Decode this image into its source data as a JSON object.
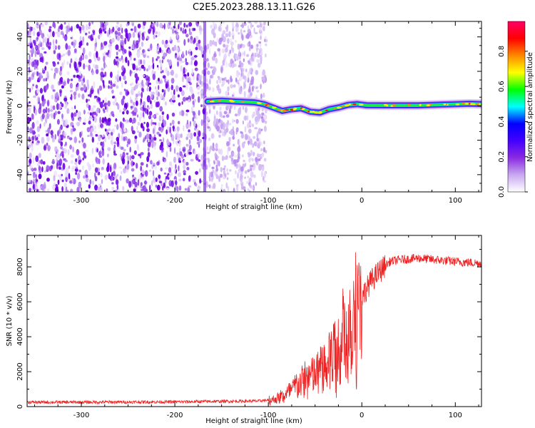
{
  "title": "C2E5.2023.288.13.11.G26",
  "chart_data": [
    {
      "type": "heatmap",
      "xlabel": "Height of straight line (km)",
      "ylabel": "Frequency (Hz)",
      "xlim": [
        -358,
        128
      ],
      "ylim": [
        -50,
        49
      ],
      "x_ticks": [
        -300,
        -200,
        -100,
        0,
        100
      ],
      "y_ticks": [
        -40,
        -20,
        0,
        20,
        40
      ],
      "colorbar": {
        "label": "Normalized spectral amplitude",
        "range": [
          0,
          0.97
        ],
        "ticks": [
          0.0,
          0.2,
          0.4,
          0.6,
          0.8
        ],
        "colormap": [
          "#ffffff",
          "#c9a8f0",
          "#8a2be2",
          "#4400ff",
          "#0000ff",
          "#00ffff",
          "#00ff00",
          "#ffff00",
          "#ff8800",
          "#ff0000",
          "#ff0066"
        ]
      },
      "features": {
        "noise_region_x": [
          -358,
          -102
        ],
        "signal_line": [
          {
            "x": -165,
            "f": 2.5
          },
          {
            "x": -150,
            "f": 3.0
          },
          {
            "x": -135,
            "f": 2.5
          },
          {
            "x": -115,
            "f": 2.0
          },
          {
            "x": -105,
            "f": 1.0
          },
          {
            "x": -95,
            "f": -1.0
          },
          {
            "x": -85,
            "f": -3.0
          },
          {
            "x": -75,
            "f": -2.0
          },
          {
            "x": -65,
            "f": -1.5
          },
          {
            "x": -55,
            "f": -3.5
          },
          {
            "x": -45,
            "f": -4.0
          },
          {
            "x": -35,
            "f": -2.0
          },
          {
            "x": -25,
            "f": -1.0
          },
          {
            "x": -15,
            "f": 0.5
          },
          {
            "x": -5,
            "f": 1.0
          },
          {
            "x": 5,
            "f": 0.3
          },
          {
            "x": 30,
            "f": 0.2
          },
          {
            "x": 60,
            "f": 0.2
          },
          {
            "x": 90,
            "f": 0.8
          },
          {
            "x": 115,
            "f": 1.2
          },
          {
            "x": 128,
            "f": 1.0
          }
        ],
        "vertical_streak_x": -168
      }
    },
    {
      "type": "line",
      "xlabel": "Height of straight line (km)",
      "ylabel": "SNR (10 * v/v)",
      "xlim": [
        -358,
        128
      ],
      "ylim": [
        0,
        9800
      ],
      "x_ticks": [
        -300,
        -200,
        -100,
        0,
        100
      ],
      "y_ticks": [
        0,
        2000,
        4000,
        6000,
        8000
      ],
      "series": [
        {
          "color": "#ee2222",
          "x": [
            -358,
            -300,
            -200,
            -150,
            -110,
            -95,
            -80,
            -70,
            -60,
            -50,
            -40,
            -30,
            -20,
            -10,
            0,
            10,
            20,
            30,
            40,
            60,
            80,
            100,
            128
          ],
          "values": [
            250,
            250,
            270,
            300,
            320,
            400,
            700,
            1200,
            1600,
            1800,
            2400,
            3000,
            3900,
            5000,
            6300,
            7200,
            7800,
            8300,
            8400,
            8500,
            8400,
            8300,
            8200
          ]
        }
      ]
    }
  ]
}
